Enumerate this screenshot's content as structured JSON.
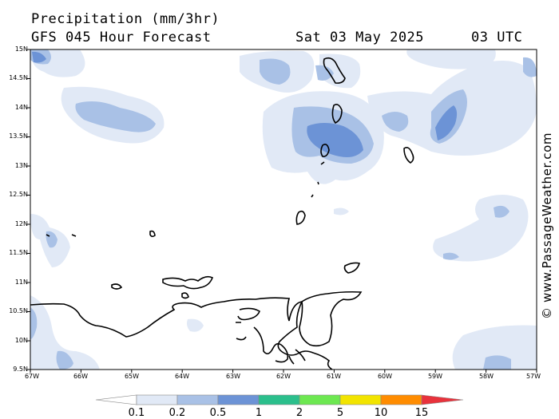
{
  "header": {
    "title": "Precipitation (mm/3hr)",
    "subtitle": "GFS 045 Hour Forecast",
    "valid_date": "Sat 03 May 2025",
    "valid_time": "03 UTC"
  },
  "credit": "© www.PassageWeather.com",
  "axes": {
    "lat_labels": [
      "15N",
      "14.5N",
      "14N",
      "13.5N",
      "13N",
      "12.5N",
      "12N",
      "11.5N",
      "11N",
      "10.5N",
      "10N",
      "9.5N"
    ],
    "lon_labels": [
      "67W",
      "66W",
      "65W",
      "64W",
      "63W",
      "62W",
      "61W",
      "60W",
      "59W",
      "58W",
      "57W"
    ]
  },
  "legend": {
    "labels": [
      "0.1",
      "0.2",
      "0.5",
      "1",
      "2",
      "5",
      "10",
      "15"
    ],
    "colors": [
      "#ffffff",
      "#e1e9f6",
      "#a9c1e6",
      "#6c93d6",
      "#2bbf8c",
      "#6de851",
      "#f2e400",
      "#ff8c00",
      "#e8323c"
    ]
  }
}
